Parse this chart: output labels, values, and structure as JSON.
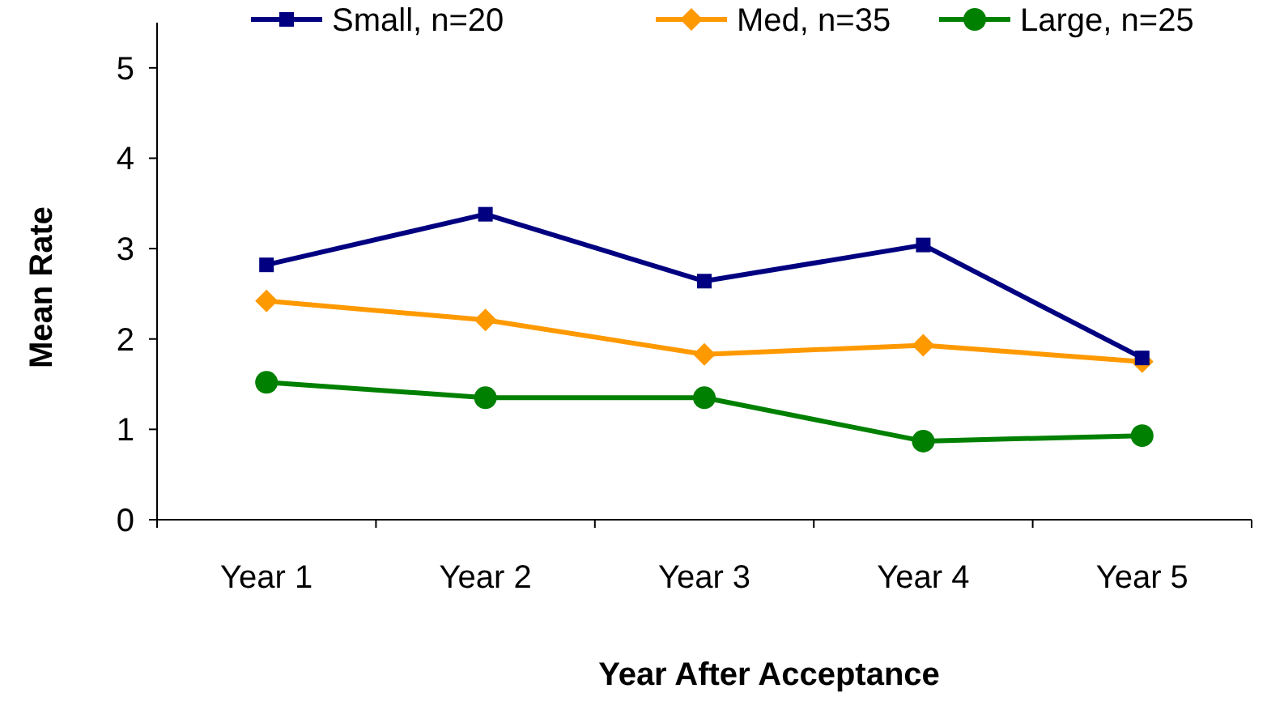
{
  "chart_data": {
    "type": "line",
    "xlabel": "Year After Acceptance",
    "ylabel": "Mean Rate",
    "categories": [
      "Year 1",
      "Year 2",
      "Year 3",
      "Year 4",
      "Year 5"
    ],
    "series": [
      {
        "name": "Small, n=20",
        "color": "#000080",
        "marker": "square",
        "values": [
          2.82,
          3.38,
          2.64,
          3.04,
          1.79
        ]
      },
      {
        "name": "Med, n=35",
        "color": "#ff9900",
        "marker": "diamond",
        "values": [
          2.42,
          2.21,
          1.83,
          1.93,
          1.75
        ]
      },
      {
        "name": "Large, n=25",
        "color": "#008000",
        "marker": "circle",
        "values": [
          1.52,
          1.35,
          1.35,
          0.87,
          0.93
        ]
      }
    ],
    "ylim": [
      0,
      5.5
    ],
    "yticks": [
      0,
      1,
      2,
      3,
      4,
      5
    ],
    "grid": false,
    "legend": "top"
  }
}
